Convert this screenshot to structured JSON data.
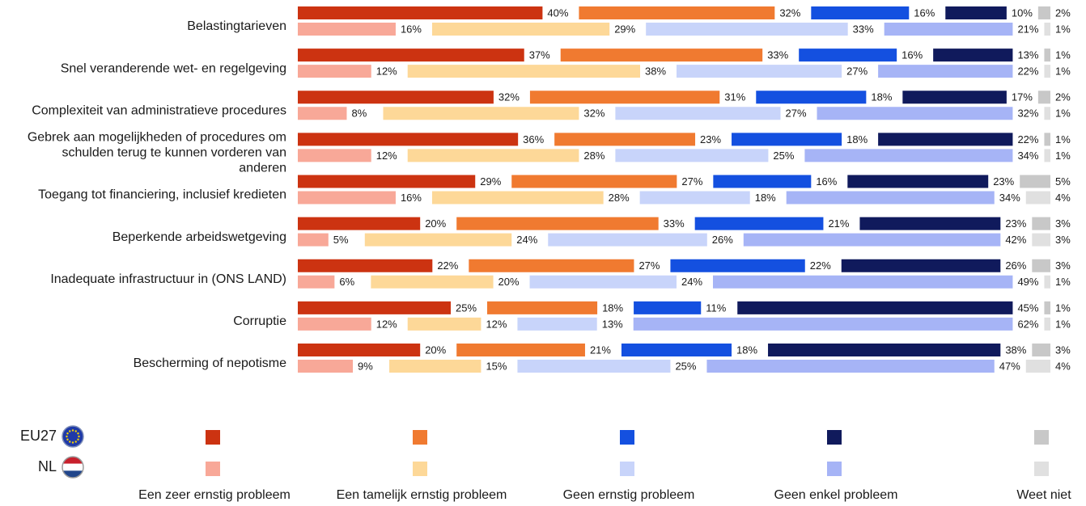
{
  "chart_data": {
    "type": "bar",
    "orientation": "horizontal",
    "stacked": true,
    "percent_suffix": "%",
    "categories": [
      [
        "Belastingtarieven"
      ],
      [
        "Snel veranderende wet- en regelgeving"
      ],
      [
        "Complexiteit van administratieve procedures"
      ],
      [
        "Gebrek aan mogelijkheden of procedures om",
        "schulden terug te kunnen vorderen van",
        "anderen"
      ],
      [
        "Toegang tot financiering, inclusief kredieten"
      ],
      [
        "Beperkende arbeidswetgeving"
      ],
      [
        "Inadequate infrastructuur in (ONS LAND)"
      ],
      [
        "Corruptie"
      ],
      [
        "Bescherming of nepotisme"
      ]
    ],
    "response_options": [
      "Een zeer ernstig probleem",
      "Een tamelijk ernstig probleem",
      "Geen ernstig probleem",
      "Geen enkel probleem",
      "Weet niet"
    ],
    "groups": [
      {
        "name": "EU27",
        "colors": [
          "#cc3311",
          "#f07a30",
          "#1450e0",
          "#101a5c",
          "#c8c8c8"
        ],
        "values": [
          [
            40,
            32,
            16,
            10,
            2
          ],
          [
            37,
            33,
            16,
            13,
            1
          ],
          [
            32,
            31,
            18,
            17,
            2
          ],
          [
            36,
            23,
            18,
            22,
            1
          ],
          [
            29,
            27,
            16,
            23,
            5
          ],
          [
            20,
            33,
            21,
            23,
            3
          ],
          [
            22,
            27,
            22,
            26,
            3
          ],
          [
            25,
            18,
            11,
            45,
            1
          ],
          [
            20,
            21,
            18,
            38,
            3
          ]
        ]
      },
      {
        "name": "NL",
        "colors": [
          "#f8a898",
          "#fdd898",
          "#c8d4fa",
          "#a6b4f6",
          "#e0e0e0"
        ],
        "values": [
          [
            16,
            29,
            33,
            21,
            1
          ],
          [
            12,
            38,
            27,
            22,
            1
          ],
          [
            8,
            32,
            27,
            32,
            1
          ],
          [
            12,
            28,
            25,
            34,
            1
          ],
          [
            16,
            28,
            18,
            34,
            4
          ],
          [
            5,
            24,
            26,
            42,
            3
          ],
          [
            6,
            20,
            24,
            49,
            1
          ],
          [
            12,
            12,
            13,
            62,
            1
          ],
          [
            9,
            15,
            25,
            47,
            4
          ]
        ]
      }
    ],
    "legend_position": "bottom"
  }
}
